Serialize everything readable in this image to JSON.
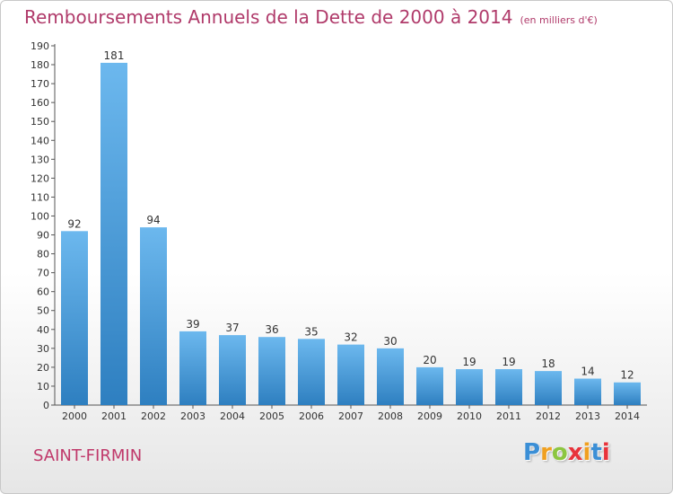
{
  "title": "Remboursements Annuels de la Dette de 2000 à 2014",
  "unit": "(en milliers d'€)",
  "commune": "SAINT-FIRMIN",
  "logo": {
    "letters": [
      "P",
      "r",
      "o",
      "x",
      "i",
      "t",
      "i"
    ],
    "colors": [
      "#3b8fd6",
      "#f0a020",
      "#8cc63f",
      "#e8333b",
      "#f0a020",
      "#3b8fd6",
      "#e8333b"
    ]
  },
  "colors": {
    "bar_top": "#6cb8ee",
    "bar_bottom": "#2e7fc0",
    "title": "#b03a6a"
  },
  "chart_data": {
    "type": "bar",
    "categories": [
      "2000",
      "2001",
      "2002",
      "2003",
      "2004",
      "2005",
      "2006",
      "2007",
      "2008",
      "2009",
      "2010",
      "2011",
      "2012",
      "2013",
      "2014"
    ],
    "values": [
      92,
      181,
      94,
      39,
      37,
      36,
      35,
      32,
      30,
      20,
      19,
      19,
      18,
      14,
      12
    ],
    "ylim": [
      0,
      190
    ],
    "yticks": [
      0,
      10,
      20,
      30,
      40,
      50,
      60,
      70,
      80,
      90,
      100,
      110,
      120,
      130,
      140,
      150,
      160,
      170,
      180,
      190
    ],
    "grid": false,
    "data_labels": true
  }
}
